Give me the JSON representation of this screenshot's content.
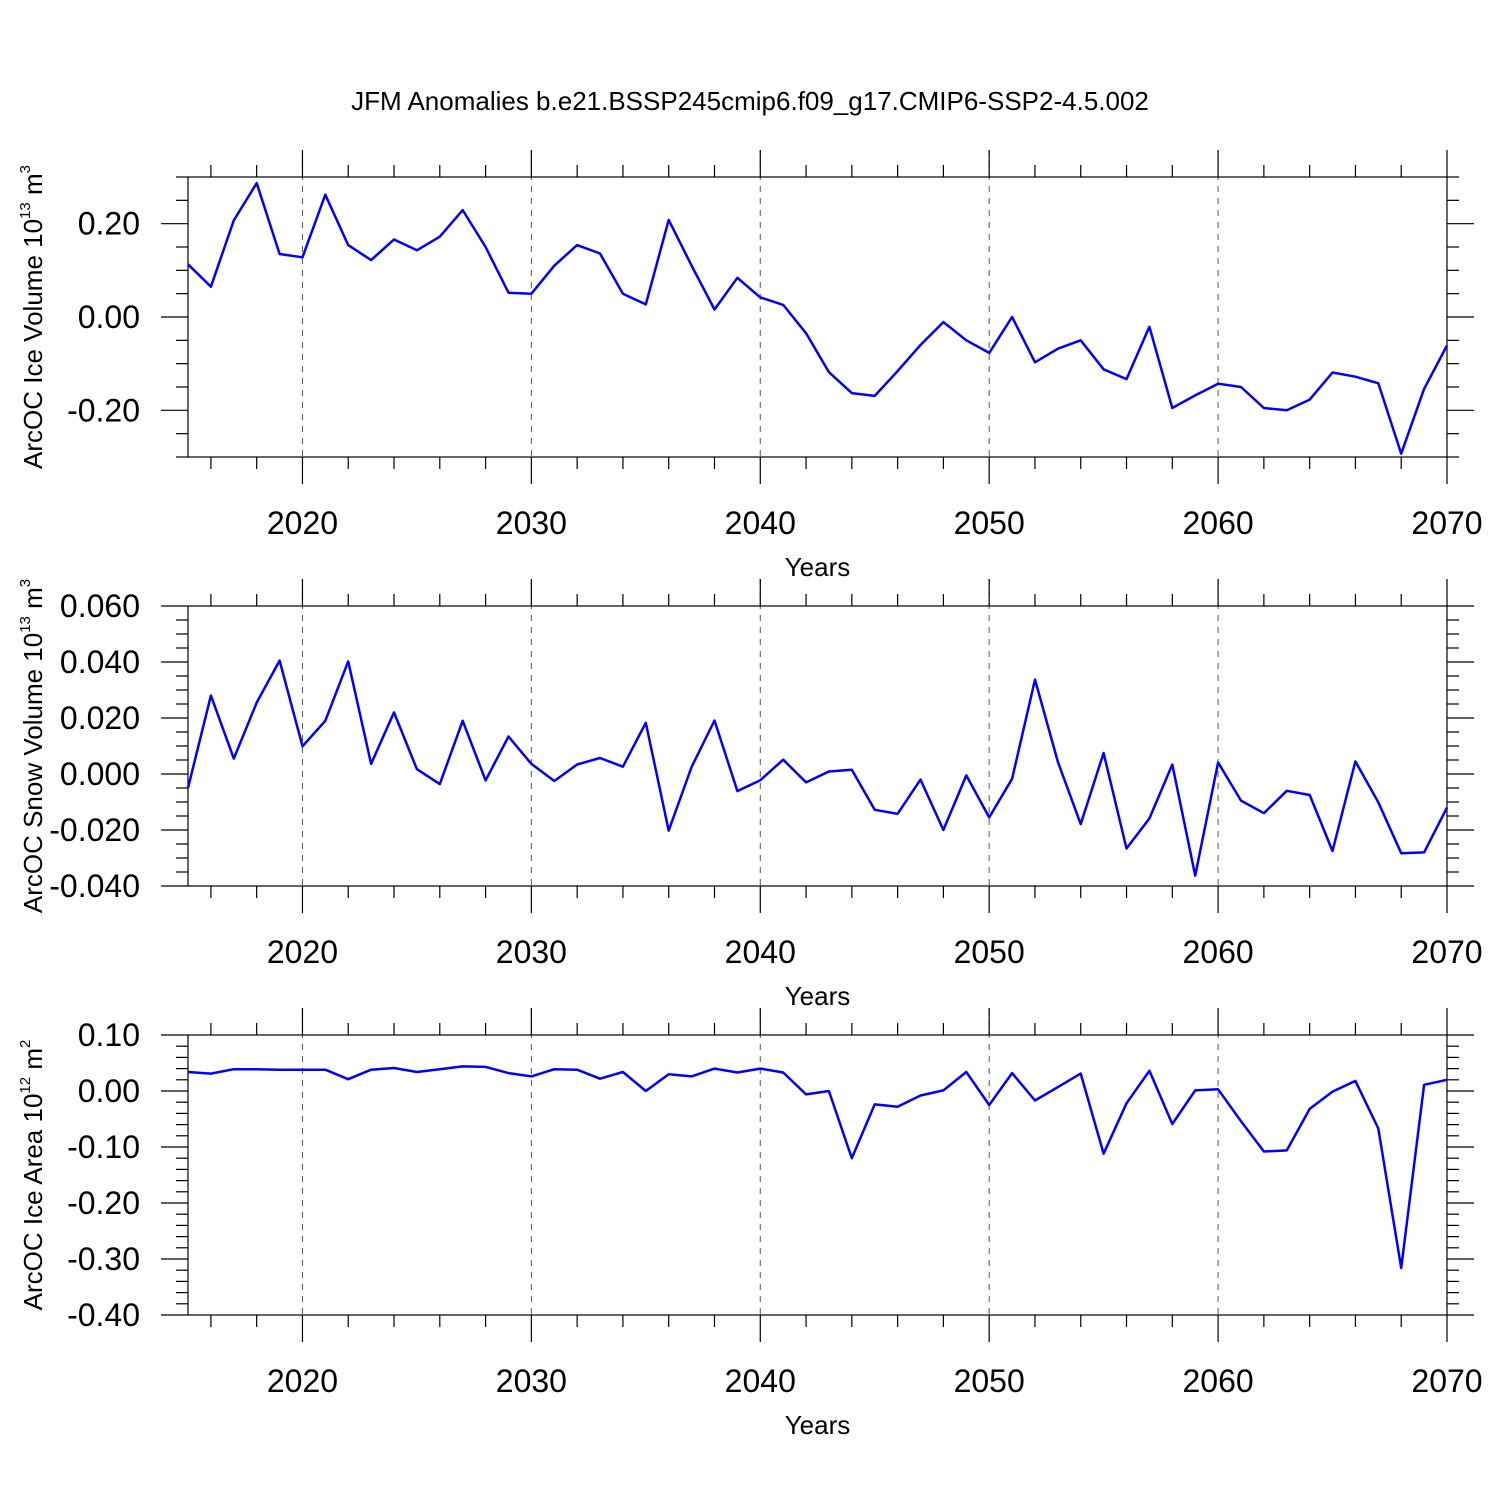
{
  "title": "JFM Anomalies b.e21.BSSP245cmip6.f09_g17.CMIP6-SSP2-4.5.002",
  "series_color": "#0000ff",
  "chart_data": [
    {
      "type": "line",
      "ylabel": "ArcOC Ice Volume 10",
      "ylabel_exp": "13",
      "ylabel_unit": " m",
      "ylabel_unit_exp": "3",
      "xlabel": "Years",
      "xlim": [
        2015,
        2070
      ],
      "ylim": [
        -0.3,
        0.3
      ],
      "yticks": [
        -0.2,
        0.0,
        0.2
      ],
      "ytick_labels": [
        "-0.20",
        "0.00",
        "0.20"
      ],
      "yminor_step": 0.05,
      "xticks": [
        2020,
        2030,
        2040,
        2050,
        2060,
        2070
      ],
      "xtick_labels": [
        "2020",
        "2030",
        "2040",
        "2050",
        "2060",
        "2070"
      ],
      "grid_x": [
        2020,
        2030,
        2040,
        2050,
        2060
      ],
      "x": [
        2015,
        2016,
        2017,
        2018,
        2019,
        2020,
        2021,
        2022,
        2023,
        2024,
        2025,
        2026,
        2027,
        2028,
        2029,
        2030,
        2031,
        2032,
        2033,
        2034,
        2035,
        2036,
        2037,
        2038,
        2039,
        2040,
        2041,
        2042,
        2043,
        2044,
        2045,
        2046,
        2047,
        2048,
        2049,
        2050,
        2051,
        2052,
        2053,
        2054,
        2055,
        2056,
        2057,
        2058,
        2059,
        2060,
        2061,
        2062,
        2063,
        2064,
        2065,
        2066,
        2067,
        2068,
        2069,
        2070
      ],
      "values": [
        0.113,
        0.065,
        0.207,
        0.287,
        0.135,
        0.128,
        0.262,
        0.154,
        0.122,
        0.166,
        0.143,
        0.172,
        0.229,
        0.15,
        0.052,
        0.05,
        0.11,
        0.154,
        0.136,
        0.05,
        0.027,
        0.208,
        0.11,
        0.016,
        0.084,
        0.042,
        0.026,
        -0.035,
        -0.118,
        -0.163,
        -0.169,
        -0.116,
        -0.06,
        -0.011,
        -0.05,
        -0.077,
        0.0,
        -0.097,
        -0.068,
        -0.05,
        -0.112,
        -0.133,
        -0.021,
        -0.195,
        -0.168,
        -0.143,
        -0.15,
        -0.195,
        -0.2,
        -0.177,
        -0.119,
        -0.128,
        -0.142,
        -0.293,
        -0.154,
        -0.061
      ]
    },
    {
      "type": "line",
      "ylabel": "ArcOC Snow Volume 10",
      "ylabel_exp": "13",
      "ylabel_unit": " m",
      "ylabel_unit_exp": "3",
      "xlabel": "Years",
      "xlim": [
        2015,
        2070
      ],
      "ylim": [
        -0.04,
        0.06
      ],
      "yticks": [
        -0.04,
        -0.02,
        0.0,
        0.02,
        0.04,
        0.06
      ],
      "ytick_labels": [
        "-0.040",
        "-0.020",
        "0.000",
        "0.020",
        "0.040",
        "0.060"
      ],
      "yminor_step": 0.005,
      "xticks": [
        2020,
        2030,
        2040,
        2050,
        2060,
        2070
      ],
      "xtick_labels": [
        "2020",
        "2030",
        "2040",
        "2050",
        "2060",
        "2070"
      ],
      "grid_x": [
        2020,
        2030,
        2040,
        2050,
        2060
      ],
      "x": [
        2015,
        2016,
        2017,
        2018,
        2019,
        2020,
        2021,
        2022,
        2023,
        2024,
        2025,
        2026,
        2027,
        2028,
        2029,
        2030,
        2031,
        2032,
        2033,
        2034,
        2035,
        2036,
        2037,
        2038,
        2039,
        2040,
        2041,
        2042,
        2043,
        2044,
        2045,
        2046,
        2047,
        2048,
        2049,
        2050,
        2051,
        2052,
        2053,
        2054,
        2055,
        2056,
        2057,
        2058,
        2059,
        2060,
        2061,
        2062,
        2063,
        2064,
        2065,
        2066,
        2067,
        2068,
        2069,
        2070
      ],
      "values": [
        -0.005,
        0.028,
        0.0055,
        0.0255,
        0.0405,
        0.0099,
        0.019,
        0.0402,
        0.0036,
        0.022,
        0.0017,
        -0.0036,
        0.019,
        -0.0023,
        0.0134,
        0.0036,
        -0.0025,
        0.0034,
        0.0057,
        0.0026,
        0.0183,
        -0.0202,
        0.0025,
        0.0191,
        -0.0061,
        -0.0022,
        0.0051,
        -0.003,
        0.0009,
        0.0015,
        -0.0128,
        -0.0142,
        -0.002,
        -0.02,
        -0.0005,
        -0.0155,
        -0.0017,
        0.0337,
        0.0043,
        -0.0179,
        0.0075,
        -0.0266,
        -0.0159,
        0.0034,
        -0.0363,
        0.0041,
        -0.0095,
        -0.014,
        -0.006,
        -0.0075,
        -0.0275,
        0.0045,
        -0.0101,
        -0.0283,
        -0.028,
        -0.012
      ]
    },
    {
      "type": "line",
      "ylabel": "ArcOC Ice Area 10",
      "ylabel_exp": "12",
      "ylabel_unit": " m",
      "ylabel_unit_exp": "2",
      "xlabel": "Years",
      "xlim": [
        2015,
        2070
      ],
      "ylim": [
        -0.4,
        0.1
      ],
      "yticks": [
        -0.4,
        -0.3,
        -0.2,
        -0.1,
        0.0,
        0.1
      ],
      "ytick_labels": [
        "-0.40",
        "-0.30",
        "-0.20",
        "-0.10",
        "0.00",
        "0.10"
      ],
      "yminor_step": 0.02,
      "xticks": [
        2020,
        2030,
        2040,
        2050,
        2060,
        2070
      ],
      "xtick_labels": [
        "2020",
        "2030",
        "2040",
        "2050",
        "2060",
        "2070"
      ],
      "grid_x": [
        2020,
        2030,
        2040,
        2050,
        2060
      ],
      "x": [
        2015,
        2016,
        2017,
        2018,
        2019,
        2020,
        2021,
        2022,
        2023,
        2024,
        2025,
        2026,
        2027,
        2028,
        2029,
        2030,
        2031,
        2032,
        2033,
        2034,
        2035,
        2036,
        2037,
        2038,
        2039,
        2040,
        2041,
        2042,
        2043,
        2044,
        2045,
        2046,
        2047,
        2048,
        2049,
        2050,
        2051,
        2052,
        2053,
        2054,
        2055,
        2056,
        2057,
        2058,
        2059,
        2060,
        2061,
        2062,
        2063,
        2064,
        2065,
        2066,
        2067,
        2068,
        2069,
        2070
      ],
      "values": [
        0.034,
        0.031,
        0.039,
        0.039,
        0.038,
        0.038,
        0.038,
        0.021,
        0.038,
        0.041,
        0.034,
        0.039,
        0.044,
        0.043,
        0.032,
        0.026,
        0.039,
        0.038,
        0.022,
        0.034,
        0.0,
        0.03,
        0.026,
        0.04,
        0.033,
        0.04,
        0.033,
        -0.006,
        0.0,
        -0.12,
        -0.024,
        -0.028,
        -0.008,
        0.001,
        0.034,
        -0.025,
        0.032,
        -0.017,
        0.007,
        0.031,
        -0.112,
        -0.022,
        0.036,
        -0.059,
        0.001,
        0.003,
        -0.054,
        -0.108,
        -0.106,
        -0.032,
        -0.001,
        0.018,
        -0.067,
        -0.316,
        0.011,
        0.02
      ]
    }
  ]
}
